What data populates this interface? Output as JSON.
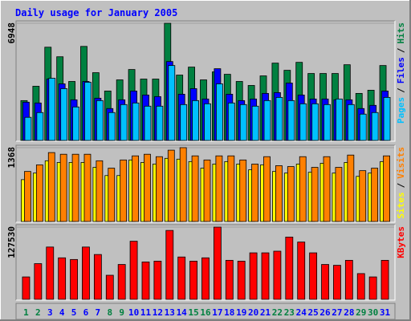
{
  "separator": "/",
  "chart_data": [
    {
      "type": "bar",
      "title": "Daily usage for January 2005",
      "ylim": [
        0,
        6948
      ],
      "yticks": [
        6948
      ],
      "legend_reversed": true,
      "series": [
        {
          "name": "Hits",
          "color": "#008040",
          "values": [
            2363,
            3214,
            5530,
            4963,
            3498,
            5577,
            4018,
            2930,
            3592,
            4207,
            3640,
            3640,
            6948,
            3876,
            4349,
            3592,
            4065,
            3923,
            3498,
            3261,
            3829,
            4585,
            4159,
            4632,
            3970,
            3970,
            3970,
            4490,
            2789,
            2978,
            4443
          ]
        },
        {
          "name": "Files",
          "color": "#0000ff",
          "values": [
            2269,
            2221,
            3640,
            3356,
            2410,
            3498,
            2505,
            1891,
            2410,
            2930,
            2694,
            2600,
            4679,
            2741,
            3072,
            2458,
            4254,
            2741,
            2363,
            2458,
            2789,
            2836,
            3403,
            2694,
            2458,
            2458,
            2410,
            2410,
            1891,
            2080,
            2930
          ]
        },
        {
          "name": "Pages",
          "color": "#00c0ff",
          "values": [
            1371,
            1654,
            3687,
            3072,
            1985,
            3450,
            2363,
            1654,
            2127,
            2221,
            2032,
            2032,
            4443,
            2127,
            2363,
            2174,
            3356,
            2221,
            2127,
            2032,
            2363,
            2552,
            2363,
            2174,
            2174,
            2127,
            2458,
            2127,
            1560,
            1654,
            2552
          ]
        }
      ]
    },
    {
      "type": "bar",
      "ylim": [
        0,
        1368
      ],
      "yticks": [
        1368
      ],
      "legend_reversed": false,
      "series": [
        {
          "name": "Sites",
          "color": "#ffff00",
          "values": [
            775,
            897,
            1125,
            1094,
            1094,
            1094,
            1003,
            851,
            851,
            1140,
            1094,
            1064,
            1170,
            1155,
            1110,
            988,
            1064,
            1110,
            1064,
            958,
            1049,
            927,
            897,
            1064,
            912,
            1079,
            897,
            1094,
            836,
            897,
            1110
          ]
        },
        {
          "name": "Visits",
          "color": "#ff8000",
          "values": [
            927,
            1049,
            1277,
            1246,
            1246,
            1246,
            1125,
            988,
            1140,
            1216,
            1246,
            1201,
            1322,
            1368,
            1216,
            1140,
            1216,
            1216,
            1140,
            1064,
            1201,
            1034,
            1018,
            1201,
            1003,
            1201,
            1003,
            1231,
            942,
            988,
            1216
          ]
        }
      ]
    },
    {
      "type": "bar",
      "ylim": [
        0,
        127530
      ],
      "yticks": [
        127530
      ],
      "legend_reversed": false,
      "categories": [
        "1",
        "2",
        "3",
        "4",
        "5",
        "6",
        "7",
        "8",
        "9",
        "10",
        "11",
        "12",
        "13",
        "14",
        "15",
        "16",
        "17",
        "18",
        "19",
        "20",
        "21",
        "22",
        "23",
        "24",
        "25",
        "26",
        "27",
        "28",
        "29",
        "30",
        "31"
      ],
      "category_colors": [
        "#008040",
        "#008040",
        "#0000ff",
        "#0000ff",
        "#0000ff",
        "#0000ff",
        "#0000ff",
        "#008040",
        "#008040",
        "#0000ff",
        "#0000ff",
        "#0000ff",
        "#0000ff",
        "#0000ff",
        "#008040",
        "#008040",
        "#0000ff",
        "#0000ff",
        "#0000ff",
        "#0000ff",
        "#0000ff",
        "#008040",
        "#008040",
        "#0000ff",
        "#0000ff",
        "#0000ff",
        "#0000ff",
        "#0000ff",
        "#008040",
        "#008040",
        "#0000ff"
      ],
      "series": [
        {
          "name": "KBytes",
          "color": "#ff0000",
          "values": [
            39578,
            63031,
            92349,
            73293,
            70362,
            92349,
            79156,
            42510,
            61566,
            102610,
            65964,
            67430,
            121666,
            74759,
            67430,
            73293,
            127530,
            68896,
            67430,
            82088,
            82088,
            85020,
            109940,
            101144,
            82088,
            61566,
            60100,
            68896,
            45442,
            39578,
            68896
          ]
        }
      ]
    }
  ]
}
